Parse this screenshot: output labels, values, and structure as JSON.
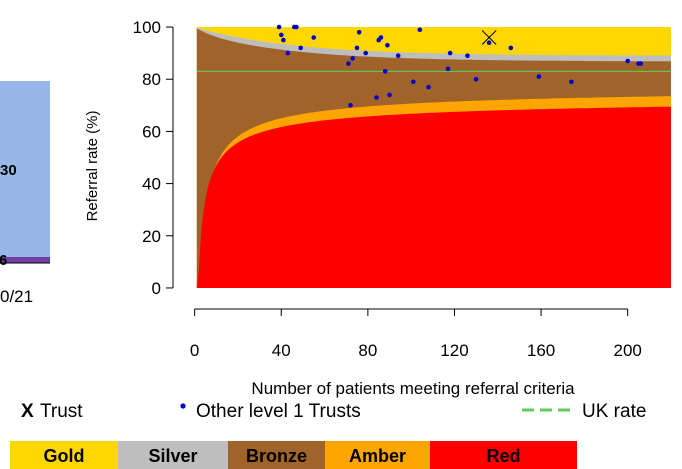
{
  "chart_data": {
    "type": "scatter",
    "xlabel": "Number of patients meeting referral criteria",
    "ylabel": "Referral rate (%)",
    "xlim": [
      -10,
      220
    ],
    "ylim": [
      -5,
      105
    ],
    "x_ticks": [
      "0",
      "40",
      "80",
      "120",
      "160",
      "200"
    ],
    "x_tick_values": [
      0,
      40,
      80,
      120,
      160,
      200
    ],
    "y_ticks": [
      "0",
      "20",
      "40",
      "60",
      "80",
      "100"
    ],
    "y_tick_values": [
      0,
      20,
      40,
      60,
      80,
      100
    ],
    "uk_rate": 83,
    "trust": {
      "label": "Trust",
      "marker": "X",
      "x": 136,
      "y": 96
    },
    "other_trusts": {
      "label": "Other level 1 Trusts",
      "points": [
        [
          39,
          100
        ],
        [
          40,
          97
        ],
        [
          41,
          95
        ],
        [
          43,
          90
        ],
        [
          46,
          100
        ],
        [
          47,
          100
        ],
        [
          49,
          92
        ],
        [
          55,
          96
        ],
        [
          71,
          86
        ],
        [
          72,
          70
        ],
        [
          73,
          88
        ],
        [
          75,
          92
        ],
        [
          76,
          98
        ],
        [
          79,
          90
        ],
        [
          84,
          73
        ],
        [
          85,
          95
        ],
        [
          86,
          96
        ],
        [
          88,
          83
        ],
        [
          89,
          93
        ],
        [
          90,
          74
        ],
        [
          94,
          89
        ],
        [
          101,
          79
        ],
        [
          104,
          99
        ],
        [
          108,
          77
        ],
        [
          117,
          84
        ],
        [
          118,
          90
        ],
        [
          126,
          89
        ],
        [
          130,
          80
        ],
        [
          136,
          94
        ],
        [
          146,
          92
        ],
        [
          159,
          81
        ],
        [
          174,
          79
        ],
        [
          200,
          87
        ],
        [
          205,
          86
        ],
        [
          206,
          86
        ]
      ]
    },
    "uk_rate_label": "UK rate",
    "bands": [
      "Gold",
      "Silver",
      "Bronze",
      "Amber",
      "Red"
    ],
    "band_colors": {
      "gold": "#FFD700",
      "silver": "#BEBEBE",
      "bronze": "#A0642A",
      "amber": "#FFA500",
      "red": "#FF0000"
    },
    "point_color": "#0000CD",
    "uk_line_color": "#5CCF5C",
    "partial_bar": {
      "color": "#97B8E6",
      "accent_color": "#7040A0",
      "labels": [
        "30",
        "6",
        "0/21"
      ]
    }
  }
}
